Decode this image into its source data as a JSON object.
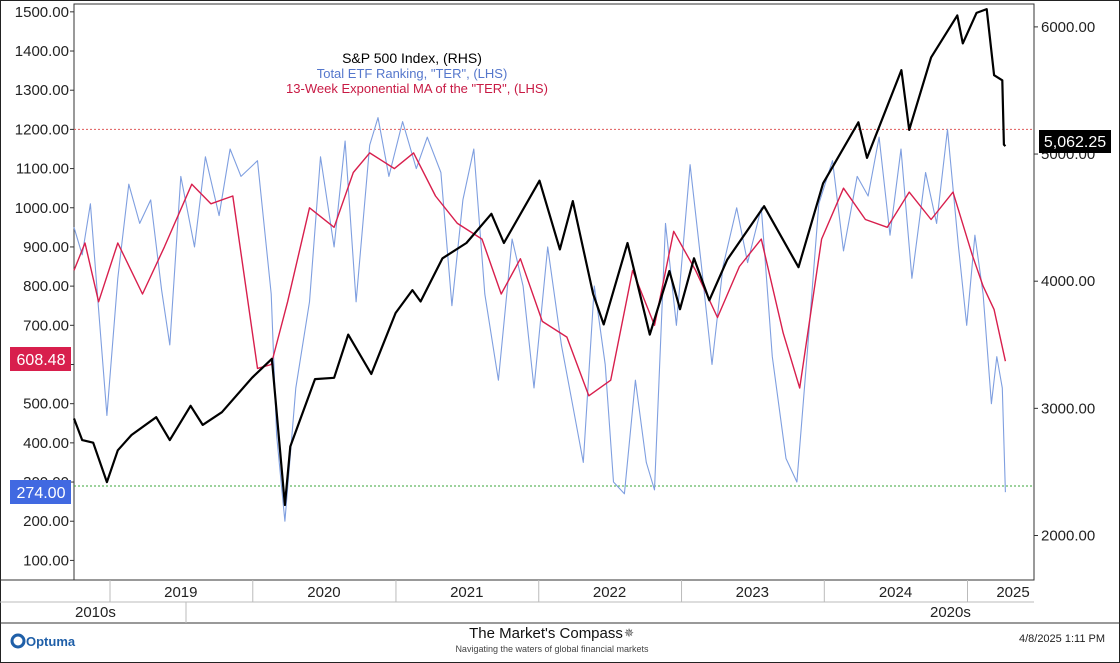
{
  "legend": {
    "line1": "S&P 500 Index, (RHS)",
    "line2": "Total ETF Ranking, \"TER\", (LHS)",
    "line3": "13-Week Exponential MA of the \"TER\", (LHS)"
  },
  "badges": {
    "ema_value": "608.48",
    "ter_value": "274.00",
    "spx_value": "5,062.25"
  },
  "footer": {
    "logo": "Optuma",
    "brand": "The Market's Compass",
    "tagline": "Navigating the waters of global financial markets",
    "date": "4/8/2025 1:11 PM"
  },
  "decades": [
    "2010s",
    "2020s"
  ],
  "colors": {
    "spx": "#000000",
    "ter": "#7f9fe0",
    "ema": "#d81f4d",
    "ema_badge": "#d81f4d",
    "ter_badge": "#4169e1",
    "spx_badge": "#000000",
    "ref_high": "#e05a5a",
    "ref_low": "#3aa63a"
  },
  "chart_data": {
    "type": "line",
    "x_range": [
      "2018-10-01",
      "2025-06-20"
    ],
    "x_year_labels": [
      "2019",
      "2020",
      "2021",
      "2022",
      "2023",
      "2024",
      "2025"
    ],
    "y_left": {
      "ticks": [
        "100.00",
        "200.00",
        "300.00",
        "400.00",
        "500.00",
        "600.00",
        "700.00",
        "800.00",
        "900.00",
        "1000.00",
        "1100.00",
        "1200.00",
        "1300.00",
        "1400.00",
        "1500.00"
      ],
      "range": [
        50,
        1520
      ]
    },
    "y_right": {
      "ticks": [
        "2000.00",
        "3000.00",
        "4000.00",
        "5000.00",
        "6000.00"
      ],
      "range": [
        1650,
        6180
      ]
    },
    "reference_lines": [
      {
        "axis": "left",
        "value": 1200,
        "style": "dotted",
        "color": "red"
      },
      {
        "axis": "left",
        "value": 290,
        "style": "dotted",
        "color": "green"
      }
    ],
    "series": [
      {
        "name": "S&P 500 Index, (RHS)",
        "axis": "right",
        "points": [
          [
            "2018-10-01",
            2920
          ],
          [
            "2018-10-22",
            2750
          ],
          [
            "2018-11-19",
            2730
          ],
          [
            "2018-12-24",
            2420
          ],
          [
            "2019-01-21",
            2670
          ],
          [
            "2019-02-25",
            2790
          ],
          [
            "2019-04-29",
            2930
          ],
          [
            "2019-06-03",
            2750
          ],
          [
            "2019-07-26",
            3020
          ],
          [
            "2019-08-26",
            2870
          ],
          [
            "2019-10-14",
            2970
          ],
          [
            "2019-12-30",
            3240
          ],
          [
            "2020-02-19",
            3390
          ],
          [
            "2020-03-23",
            2240
          ],
          [
            "2020-04-06",
            2700
          ],
          [
            "2020-06-08",
            3230
          ],
          [
            "2020-07-27",
            3240
          ],
          [
            "2020-09-01",
            3580
          ],
          [
            "2020-10-30",
            3270
          ],
          [
            "2020-12-31",
            3750
          ],
          [
            "2021-02-12",
            3930
          ],
          [
            "2021-03-05",
            3840
          ],
          [
            "2021-04-30",
            4180
          ],
          [
            "2021-06-30",
            4300
          ],
          [
            "2021-09-02",
            4530
          ],
          [
            "2021-10-04",
            4300
          ],
          [
            "2022-01-03",
            4790
          ],
          [
            "2022-02-24",
            4250
          ],
          [
            "2022-03-29",
            4630
          ],
          [
            "2022-05-20",
            3900
          ],
          [
            "2022-06-16",
            3660
          ],
          [
            "2022-08-16",
            4300
          ],
          [
            "2022-10-12",
            3580
          ],
          [
            "2022-12-01",
            4080
          ],
          [
            "2022-12-28",
            3780
          ],
          [
            "2023-02-02",
            4180
          ],
          [
            "2023-03-13",
            3850
          ],
          [
            "2023-04-28",
            4170
          ],
          [
            "2023-07-31",
            4590
          ],
          [
            "2023-10-27",
            4110
          ],
          [
            "2023-12-29",
            4770
          ],
          [
            "2024-03-28",
            5250
          ],
          [
            "2024-04-19",
            4970
          ],
          [
            "2024-07-16",
            5660
          ],
          [
            "2024-08-05",
            5190
          ],
          [
            "2024-09-30",
            5760
          ],
          [
            "2024-12-06",
            6090
          ],
          [
            "2024-12-20",
            5870
          ],
          [
            "2025-01-24",
            6110
          ],
          [
            "2025-02-19",
            6140
          ],
          [
            "2025-03-10",
            5620
          ],
          [
            "2025-03-31",
            5580
          ],
          [
            "2025-04-04",
            5074
          ],
          [
            "2025-04-08",
            5062.25
          ]
        ]
      },
      {
        "name": "Total ETF Ranking, \"TER\", (LHS)",
        "axis": "left",
        "points": [
          [
            "2018-10-01",
            950
          ],
          [
            "2018-10-22",
            880
          ],
          [
            "2018-11-12",
            1010
          ],
          [
            "2018-12-03",
            740
          ],
          [
            "2018-12-24",
            470
          ],
          [
            "2019-01-21",
            820
          ],
          [
            "2019-02-18",
            1060
          ],
          [
            "2019-03-18",
            960
          ],
          [
            "2019-04-15",
            1020
          ],
          [
            "2019-05-13",
            790
          ],
          [
            "2019-06-03",
            650
          ],
          [
            "2019-07-01",
            1080
          ],
          [
            "2019-08-05",
            900
          ],
          [
            "2019-09-02",
            1130
          ],
          [
            "2019-10-07",
            980
          ],
          [
            "2019-11-04",
            1150
          ],
          [
            "2019-12-02",
            1080
          ],
          [
            "2020-01-13",
            1120
          ],
          [
            "2020-02-17",
            780
          ],
          [
            "2020-03-02",
            420
          ],
          [
            "2020-03-23",
            200
          ],
          [
            "2020-04-20",
            540
          ],
          [
            "2020-05-25",
            760
          ],
          [
            "2020-06-22",
            1130
          ],
          [
            "2020-07-27",
            900
          ],
          [
            "2020-08-24",
            1170
          ],
          [
            "2020-09-21",
            760
          ],
          [
            "2020-10-26",
            1160
          ],
          [
            "2020-11-16",
            1230
          ],
          [
            "2020-12-14",
            1080
          ],
          [
            "2021-01-18",
            1220
          ],
          [
            "2021-02-22",
            1100
          ],
          [
            "2021-03-22",
            1180
          ],
          [
            "2021-04-26",
            1090
          ],
          [
            "2021-05-24",
            750
          ],
          [
            "2021-06-21",
            1020
          ],
          [
            "2021-07-19",
            1150
          ],
          [
            "2021-08-16",
            780
          ],
          [
            "2021-09-20",
            560
          ],
          [
            "2021-10-25",
            920
          ],
          [
            "2021-11-22",
            800
          ],
          [
            "2021-12-20",
            540
          ],
          [
            "2022-01-24",
            900
          ],
          [
            "2022-02-28",
            650
          ],
          [
            "2022-03-28",
            500
          ],
          [
            "2022-04-25",
            350
          ],
          [
            "2022-05-23",
            800
          ],
          [
            "2022-06-20",
            600
          ],
          [
            "2022-07-11",
            300
          ],
          [
            "2022-08-08",
            270
          ],
          [
            "2022-09-05",
            560
          ],
          [
            "2022-10-03",
            350
          ],
          [
            "2022-10-24",
            280
          ],
          [
            "2022-11-21",
            960
          ],
          [
            "2022-12-19",
            700
          ],
          [
            "2023-01-23",
            1110
          ],
          [
            "2023-02-20",
            860
          ],
          [
            "2023-03-20",
            600
          ],
          [
            "2023-04-17",
            850
          ],
          [
            "2023-05-22",
            1000
          ],
          [
            "2023-06-19",
            860
          ],
          [
            "2023-07-24",
            1000
          ],
          [
            "2023-08-21",
            620
          ],
          [
            "2023-09-25",
            360
          ],
          [
            "2023-10-23",
            300
          ],
          [
            "2023-11-20",
            650
          ],
          [
            "2023-12-18",
            1010
          ],
          [
            "2024-01-22",
            1120
          ],
          [
            "2024-02-19",
            890
          ],
          [
            "2024-03-25",
            1080
          ],
          [
            "2024-04-22",
            1030
          ],
          [
            "2024-05-20",
            1180
          ],
          [
            "2024-06-17",
            930
          ],
          [
            "2024-07-15",
            1150
          ],
          [
            "2024-08-12",
            820
          ],
          [
            "2024-09-16",
            1090
          ],
          [
            "2024-10-14",
            960
          ],
          [
            "2024-11-11",
            1200
          ],
          [
            "2024-12-09",
            900
          ],
          [
            "2024-12-30",
            700
          ],
          [
            "2025-01-20",
            930
          ],
          [
            "2025-02-10",
            780
          ],
          [
            "2025-03-03",
            500
          ],
          [
            "2025-03-17",
            620
          ],
          [
            "2025-03-31",
            540
          ],
          [
            "2025-04-08",
            274
          ]
        ]
      },
      {
        "name": "13-Week Exponential MA of the \"TER\", (LHS)",
        "axis": "left",
        "points": [
          [
            "2018-10-01",
            840
          ],
          [
            "2018-10-29",
            910
          ],
          [
            "2018-12-03",
            760
          ],
          [
            "2019-01-21",
            910
          ],
          [
            "2019-03-25",
            780
          ],
          [
            "2019-05-20",
            900
          ],
          [
            "2019-07-29",
            1060
          ],
          [
            "2019-09-16",
            1010
          ],
          [
            "2019-11-11",
            1030
          ],
          [
            "2020-01-13",
            590
          ],
          [
            "2020-02-17",
            600
          ],
          [
            "2020-03-30",
            760
          ],
          [
            "2020-05-25",
            1000
          ],
          [
            "2020-07-27",
            950
          ],
          [
            "2020-09-14",
            1090
          ],
          [
            "2020-10-26",
            1140
          ],
          [
            "2020-12-28",
            1100
          ],
          [
            "2021-02-15",
            1140
          ],
          [
            "2021-04-12",
            1030
          ],
          [
            "2021-06-07",
            960
          ],
          [
            "2021-08-09",
            920
          ],
          [
            "2021-09-27",
            780
          ],
          [
            "2021-11-15",
            870
          ],
          [
            "2022-01-10",
            710
          ],
          [
            "2022-03-14",
            670
          ],
          [
            "2022-05-09",
            520
          ],
          [
            "2022-07-04",
            560
          ],
          [
            "2022-08-29",
            840
          ],
          [
            "2022-10-24",
            700
          ],
          [
            "2022-12-12",
            940
          ],
          [
            "2023-02-06",
            840
          ],
          [
            "2023-04-03",
            720
          ],
          [
            "2023-05-29",
            850
          ],
          [
            "2023-07-24",
            920
          ],
          [
            "2023-09-18",
            680
          ],
          [
            "2023-10-30",
            540
          ],
          [
            "2023-12-25",
            920
          ],
          [
            "2024-02-19",
            1050
          ],
          [
            "2024-04-15",
            970
          ],
          [
            "2024-06-10",
            950
          ],
          [
            "2024-08-05",
            1040
          ],
          [
            "2024-09-30",
            970
          ],
          [
            "2024-11-25",
            1040
          ],
          [
            "2025-01-13",
            880
          ],
          [
            "2025-02-10",
            800
          ],
          [
            "2025-03-10",
            740
          ],
          [
            "2025-04-08",
            608.48
          ]
        ]
      }
    ]
  }
}
